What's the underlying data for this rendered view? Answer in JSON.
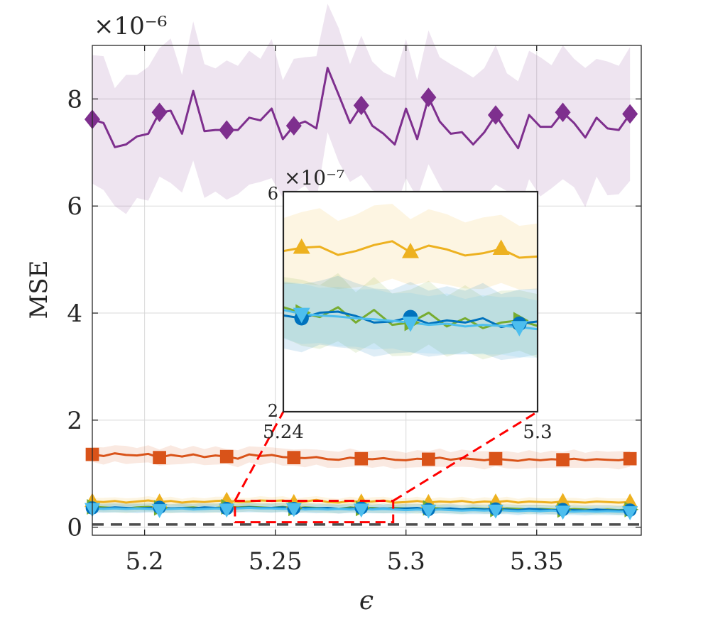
{
  "chart_data": {
    "type": "line",
    "title": "",
    "xlabel": "ϵ",
    "ylabel": "MSE",
    "exponent_label": "×10⁻⁶",
    "xlim": [
      5.18,
      5.39
    ],
    "ylim": [
      -0.15,
      9.0
    ],
    "x_ticks": [
      5.2,
      5.25,
      5.3,
      5.35
    ],
    "x_tick_labels": [
      "5.2",
      "5.25",
      "5.3",
      "5.35"
    ],
    "y_ticks": [
      0,
      2,
      4,
      6,
      8
    ],
    "y_tick_labels": [
      "0",
      "2",
      "4",
      "6",
      "8"
    ],
    "grid": true,
    "reference_line": {
      "y": 0.05,
      "style": "dashed",
      "color": "#4d4d4d"
    },
    "x": [
      5.18,
      5.1843,
      5.1886,
      5.1929,
      5.1971,
      5.2014,
      5.2057,
      5.21,
      5.2143,
      5.2186,
      5.2229,
      5.2271,
      5.2314,
      5.2357,
      5.24,
      5.2443,
      5.2486,
      5.2529,
      5.2571,
      5.2614,
      5.2657,
      5.27,
      5.2743,
      5.2786,
      5.2829,
      5.2871,
      5.2914,
      5.2957,
      5.3,
      5.3043,
      5.3086,
      5.3129,
      5.3171,
      5.3214,
      5.3257,
      5.33,
      5.3343,
      5.3386,
      5.3429,
      5.3471,
      5.3514,
      5.3557,
      5.36,
      5.3643,
      5.3686,
      5.3729,
      5.3771,
      5.3814,
      5.3857
    ],
    "series": [
      {
        "name": "purple",
        "color": "#7E2F8E",
        "marker": "diamond",
        "marker_every": 6,
        "values": [
          7.62,
          7.55,
          7.1,
          7.15,
          7.3,
          7.35,
          7.75,
          7.78,
          7.35,
          8.15,
          7.4,
          7.42,
          7.42,
          7.42,
          7.65,
          7.6,
          7.82,
          7.25,
          7.5,
          7.58,
          7.45,
          8.58,
          8.07,
          7.55,
          7.88,
          7.5,
          7.35,
          7.15,
          7.82,
          7.25,
          8.03,
          7.58,
          7.35,
          7.38,
          7.15,
          7.38,
          7.7,
          7.38,
          7.08,
          7.7,
          7.48,
          7.48,
          7.75,
          7.55,
          7.28,
          7.65,
          7.45,
          7.42,
          7.72
        ],
        "band_halfwidth": [
          1.2,
          1.25,
          1.1,
          1.3,
          1.15,
          1.25,
          1.2,
          1.35,
          1.1,
          1.3,
          1.25,
          1.15,
          1.3,
          1.2,
          1.25,
          1.15,
          1.3,
          1.1,
          1.25,
          1.2,
          1.35,
          1.2,
          1.25,
          1.1,
          1.3,
          1.2,
          1.15,
          1.25,
          1.3,
          1.1,
          1.25,
          1.2,
          1.3,
          1.15,
          1.25,
          1.2,
          1.3,
          1.1,
          1.25,
          1.2,
          1.3,
          1.15,
          1.25,
          1.2,
          1.3,
          1.1,
          1.25,
          1.2,
          1.25
        ]
      },
      {
        "name": "orange",
        "color": "#D95319",
        "marker": "square",
        "marker_every": 6,
        "values": [
          1.36,
          1.33,
          1.38,
          1.35,
          1.34,
          1.37,
          1.3,
          1.35,
          1.32,
          1.36,
          1.31,
          1.34,
          1.32,
          1.28,
          1.36,
          1.33,
          1.35,
          1.31,
          1.3,
          1.29,
          1.31,
          1.27,
          1.26,
          1.3,
          1.28,
          1.27,
          1.29,
          1.26,
          1.25,
          1.28,
          1.27,
          1.3,
          1.26,
          1.29,
          1.27,
          1.25,
          1.28,
          1.26,
          1.24,
          1.27,
          1.25,
          1.27,
          1.26,
          1.28,
          1.25,
          1.27,
          1.26,
          1.25,
          1.28
        ],
        "band_halfwidth": [
          0.14,
          0.16,
          0.15,
          0.17,
          0.14,
          0.16,
          0.15,
          0.18,
          0.14,
          0.16,
          0.15,
          0.17,
          0.14,
          0.16,
          0.15,
          0.17,
          0.14,
          0.16,
          0.15,
          0.17,
          0.14,
          0.16,
          0.15,
          0.17,
          0.14,
          0.16,
          0.15,
          0.17,
          0.14,
          0.16,
          0.15,
          0.17,
          0.14,
          0.16,
          0.15,
          0.17,
          0.14,
          0.16,
          0.15,
          0.17,
          0.14,
          0.16,
          0.15,
          0.17,
          0.14,
          0.16,
          0.15,
          0.17,
          0.15
        ]
      },
      {
        "name": "yellow",
        "color": "#EDB120",
        "marker": "triangle-up",
        "marker_every": 6,
        "values": [
          0.48,
          0.47,
          0.49,
          0.46,
          0.48,
          0.5,
          0.47,
          0.49,
          0.46,
          0.48,
          0.47,
          0.49,
          0.5,
          0.47,
          0.48,
          0.5,
          0.49,
          0.5,
          0.46,
          0.48,
          0.51,
          0.47,
          0.46,
          0.49,
          0.47,
          0.48,
          0.5,
          0.46,
          0.47,
          0.49,
          0.46,
          0.48,
          0.47,
          0.49,
          0.46,
          0.48,
          0.47,
          0.49,
          0.46,
          0.48,
          0.47,
          0.46,
          0.48,
          0.47,
          0.46,
          0.48,
          0.47,
          0.46,
          0.47
        ],
        "band_halfwidth": [
          0.07,
          0.08,
          0.07,
          0.08,
          0.07,
          0.08,
          0.07,
          0.08,
          0.07,
          0.08,
          0.07,
          0.08,
          0.07,
          0.08,
          0.07,
          0.08,
          0.07,
          0.08,
          0.07,
          0.08,
          0.07,
          0.08,
          0.07,
          0.08,
          0.07,
          0.08,
          0.07,
          0.08,
          0.07,
          0.08,
          0.07,
          0.08,
          0.07,
          0.08,
          0.07,
          0.08,
          0.07,
          0.08,
          0.07,
          0.08,
          0.07,
          0.08,
          0.07,
          0.08,
          0.07,
          0.08,
          0.07,
          0.08,
          0.07
        ]
      },
      {
        "name": "green",
        "color": "#77AC30",
        "marker": "triangle-right",
        "marker_every": 6,
        "values": [
          0.38,
          0.37,
          0.36,
          0.35,
          0.37,
          0.38,
          0.36,
          0.35,
          0.36,
          0.37,
          0.35,
          0.36,
          0.38,
          0.37,
          0.38,
          0.37,
          0.36,
          0.38,
          0.35,
          0.37,
          0.36,
          0.35,
          0.34,
          0.37,
          0.35,
          0.36,
          0.34,
          0.36,
          0.35,
          0.34,
          0.36,
          0.35,
          0.34,
          0.33,
          0.35,
          0.34,
          0.33,
          0.35,
          0.34,
          0.33,
          0.34,
          0.33,
          0.32,
          0.34,
          0.33,
          0.32,
          0.33,
          0.32,
          0.33
        ],
        "band_halfwidth": [
          0.08,
          0.09,
          0.08,
          0.09,
          0.08,
          0.09,
          0.08,
          0.09,
          0.08,
          0.09,
          0.08,
          0.09,
          0.08,
          0.09,
          0.08,
          0.09,
          0.08,
          0.09,
          0.08,
          0.09,
          0.08,
          0.09,
          0.08,
          0.09,
          0.08,
          0.09,
          0.08,
          0.09,
          0.08,
          0.09,
          0.08,
          0.09,
          0.08,
          0.09,
          0.08,
          0.09,
          0.08,
          0.09,
          0.08,
          0.09,
          0.08,
          0.09,
          0.08,
          0.09,
          0.08,
          0.09,
          0.08,
          0.09,
          0.08
        ]
      },
      {
        "name": "blue",
        "color": "#0072BD",
        "marker": "circle",
        "marker_every": 6,
        "values": [
          0.36,
          0.35,
          0.37,
          0.36,
          0.35,
          0.36,
          0.37,
          0.35,
          0.36,
          0.35,
          0.37,
          0.36,
          0.35,
          0.36,
          0.37,
          0.36,
          0.36,
          0.37,
          0.35,
          0.36,
          0.35,
          0.36,
          0.34,
          0.35,
          0.36,
          0.34,
          0.35,
          0.34,
          0.35,
          0.36,
          0.33,
          0.34,
          0.35,
          0.33,
          0.34,
          0.33,
          0.34,
          0.33,
          0.32,
          0.34,
          0.33,
          0.32,
          0.33,
          0.32,
          0.31,
          0.33,
          0.32,
          0.31,
          0.32
        ],
        "band_halfwidth": [
          0.09,
          0.08,
          0.09,
          0.08,
          0.09,
          0.08,
          0.09,
          0.08,
          0.09,
          0.08,
          0.09,
          0.08,
          0.09,
          0.08,
          0.09,
          0.08,
          0.09,
          0.08,
          0.09,
          0.08,
          0.09,
          0.08,
          0.09,
          0.08,
          0.09,
          0.08,
          0.09,
          0.08,
          0.09,
          0.08,
          0.09,
          0.08,
          0.09,
          0.08,
          0.09,
          0.08,
          0.09,
          0.08,
          0.09,
          0.08,
          0.09,
          0.08,
          0.09,
          0.08,
          0.09,
          0.08,
          0.09,
          0.08,
          0.09
        ]
      },
      {
        "name": "cyan",
        "color": "#4DBEEE",
        "marker": "triangle-down",
        "marker_every": 6,
        "values": [
          0.35,
          0.34,
          0.35,
          0.34,
          0.35,
          0.34,
          0.33,
          0.34,
          0.35,
          0.33,
          0.34,
          0.35,
          0.34,
          0.35,
          0.36,
          0.35,
          0.35,
          0.34,
          0.35,
          0.33,
          0.34,
          0.33,
          0.34,
          0.33,
          0.34,
          0.33,
          0.34,
          0.33,
          0.32,
          0.33,
          0.32,
          0.33,
          0.32,
          0.31,
          0.32,
          0.31,
          0.32,
          0.31,
          0.3,
          0.31,
          0.3,
          0.31,
          0.3,
          0.29,
          0.3,
          0.29,
          0.3,
          0.29,
          0.29
        ],
        "band_halfwidth": [
          0.08,
          0.07,
          0.08,
          0.07,
          0.08,
          0.07,
          0.08,
          0.07,
          0.08,
          0.07,
          0.08,
          0.07,
          0.08,
          0.07,
          0.08,
          0.07,
          0.08,
          0.07,
          0.08,
          0.07,
          0.08,
          0.07,
          0.08,
          0.07,
          0.08,
          0.07,
          0.08,
          0.07,
          0.08,
          0.07,
          0.08,
          0.07,
          0.08,
          0.07,
          0.08,
          0.07,
          0.08,
          0.07,
          0.08,
          0.07,
          0.08,
          0.07,
          0.08,
          0.07,
          0.08,
          0.07,
          0.08,
          0.07,
          0.08
        ]
      }
    ],
    "zoom_region": {
      "x": [
        5.24,
        5.3
      ],
      "y": [
        0.2,
        0.6
      ],
      "color": "#ff0000"
    },
    "inset": {
      "exponent_label": "×10⁻⁷",
      "xlim": [
        5.24,
        5.3
      ],
      "ylim": [
        2,
        6
      ],
      "x_tick_labels": [
        "5.24",
        "5.3"
      ],
      "y_tick_labels": [
        "2",
        "6"
      ],
      "series": [
        {
          "name": "yellow",
          "color": "#EDB120",
          "marker": "triangle-up",
          "x": [
            5.24,
            5.2443,
            5.2486,
            5.2529,
            5.2571,
            5.2614,
            5.2657,
            5.27,
            5.2743,
            5.2786,
            5.2829,
            5.2871,
            5.2914,
            5.2957,
            5.3
          ],
          "values": [
            4.92,
            4.98,
            5.0,
            4.85,
            4.92,
            5.03,
            5.1,
            4.9,
            5.02,
            4.95,
            4.84,
            4.88,
            4.96,
            4.8,
            4.82
          ],
          "band_halfwidth": [
            0.6,
            0.65,
            0.7,
            0.62,
            0.66,
            0.72,
            0.68,
            0.6,
            0.66,
            0.64,
            0.6,
            0.65,
            0.62,
            0.58,
            0.6
          ],
          "marker_idx": [
            1,
            7,
            12
          ]
        },
        {
          "name": "green",
          "color": "#77AC30",
          "marker": "triangle-right",
          "x": [
            5.24,
            5.2443,
            5.2486,
            5.2529,
            5.2571,
            5.2614,
            5.2657,
            5.27,
            5.2743,
            5.2786,
            5.2829,
            5.2871,
            5.2914,
            5.2957,
            5.3
          ],
          "values": [
            3.9,
            3.8,
            3.72,
            3.9,
            3.62,
            3.85,
            3.58,
            3.62,
            3.8,
            3.55,
            3.7,
            3.52,
            3.62,
            3.66,
            3.56
          ],
          "band_halfwidth": [
            0.55,
            0.6,
            0.58,
            0.62,
            0.55,
            0.6,
            0.57,
            0.6,
            0.58,
            0.55,
            0.6,
            0.57,
            0.58,
            0.55,
            0.58
          ],
          "marker_idx": [
            1,
            7,
            13
          ]
        },
        {
          "name": "blue",
          "color": "#0072BD",
          "marker": "circle",
          "x": [
            5.24,
            5.2443,
            5.2486,
            5.2529,
            5.2571,
            5.2614,
            5.2657,
            5.27,
            5.2743,
            5.2786,
            5.2829,
            5.2871,
            5.2914,
            5.2957,
            5.3
          ],
          "values": [
            3.75,
            3.7,
            3.8,
            3.82,
            3.74,
            3.62,
            3.64,
            3.72,
            3.6,
            3.66,
            3.62,
            3.7,
            3.54,
            3.6,
            3.64
          ],
          "band_halfwidth": [
            0.6,
            0.62,
            0.58,
            0.65,
            0.6,
            0.62,
            0.58,
            0.64,
            0.6,
            0.62,
            0.58,
            0.64,
            0.6,
            0.62,
            0.6
          ],
          "marker_idx": [
            1,
            7,
            13
          ]
        },
        {
          "name": "cyan",
          "color": "#4DBEEE",
          "marker": "triangle-down",
          "x": [
            5.24,
            5.2443,
            5.2486,
            5.2529,
            5.2571,
            5.2614,
            5.2657,
            5.27,
            5.2743,
            5.2786,
            5.2829,
            5.2871,
            5.2914,
            5.2957,
            5.3
          ],
          "values": [
            3.85,
            3.78,
            3.75,
            3.73,
            3.7,
            3.68,
            3.65,
            3.62,
            3.58,
            3.6,
            3.55,
            3.58,
            3.56,
            3.54,
            3.5
          ],
          "band_halfwidth": [
            0.52,
            0.55,
            0.5,
            0.54,
            0.52,
            0.55,
            0.5,
            0.54,
            0.52,
            0.55,
            0.5,
            0.54,
            0.52,
            0.55,
            0.52
          ],
          "marker_idx": [
            1,
            7,
            13
          ]
        }
      ]
    }
  }
}
